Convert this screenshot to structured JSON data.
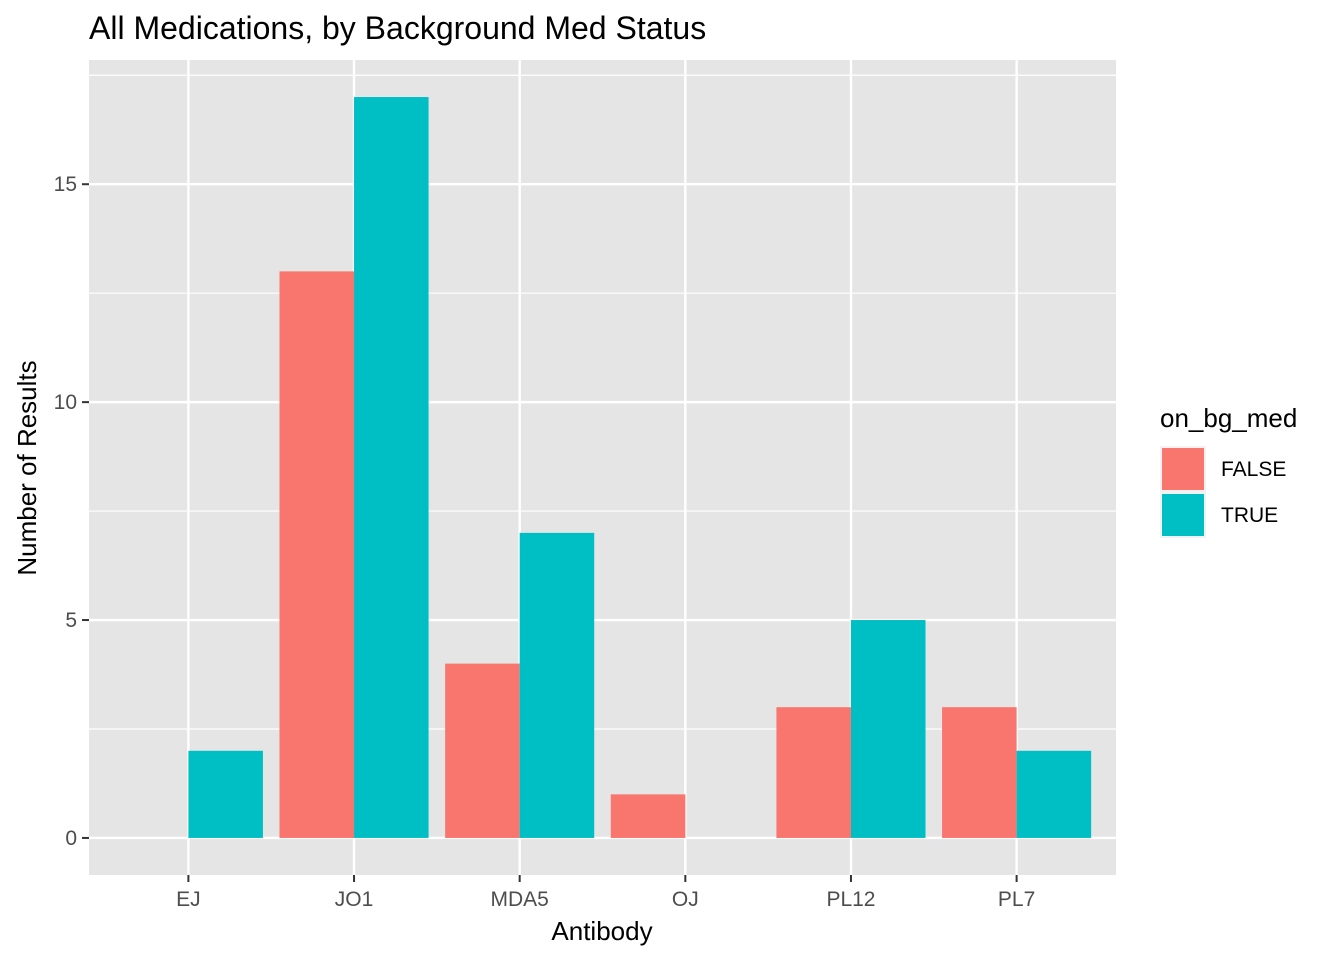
{
  "chart_data": {
    "type": "bar",
    "title": "All Medications, by Background Med Status",
    "xlabel": "Antibody",
    "ylabel": "Number of Results",
    "categories": [
      "EJ",
      "JO1",
      "MDA5",
      "OJ",
      "PL12",
      "PL7"
    ],
    "series": [
      {
        "name": "FALSE",
        "color": "#F8766D",
        "values": [
          0,
          13,
          4,
          1,
          3,
          3
        ]
      },
      {
        "name": "TRUE",
        "color": "#00BFC4",
        "values": [
          2,
          17,
          7,
          0,
          5,
          2
        ]
      }
    ],
    "ylim": [
      -0.85,
      17.85
    ],
    "yticks": [
      0,
      5,
      10,
      15
    ],
    "grid": true,
    "legend": {
      "title": "on_bg_med",
      "position": "right"
    },
    "panel_background": "#EBEBEB"
  }
}
